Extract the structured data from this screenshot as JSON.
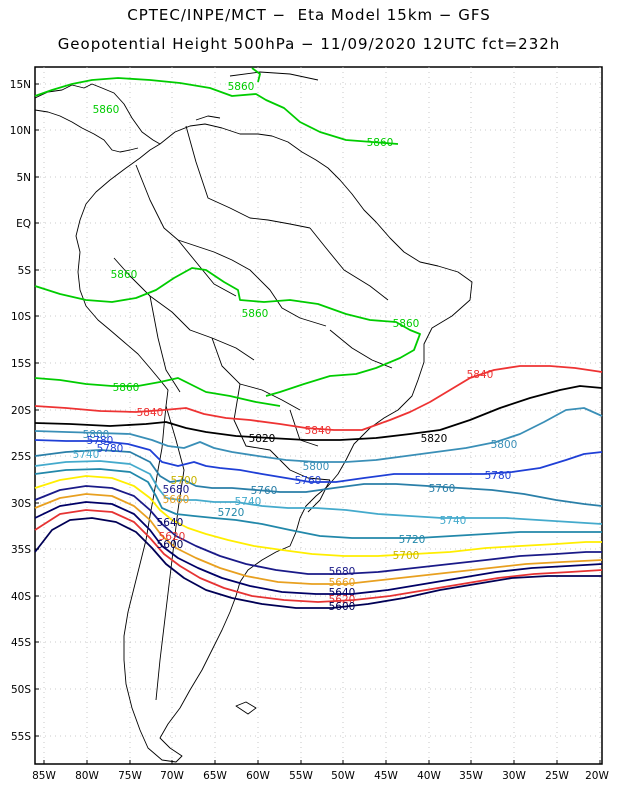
{
  "title_line1": "CPTEC/INPE/MCT −  Eta Model 15km − GFS",
  "title_line2": "Geopotential Height 500hPa − 11/09/2020 12UTC fct=232h",
  "axes": {
    "lat_labels": [
      "15N",
      "10N",
      "5N",
      "EQ",
      "5S",
      "10S",
      "15S",
      "20S",
      "25S",
      "30S",
      "35S",
      "40S",
      "45S",
      "50S",
      "55S"
    ],
    "lon_labels": [
      "85W",
      "80W",
      "75W",
      "70W",
      "65W",
      "60W",
      "55W",
      "50W",
      "45W",
      "40W",
      "35W",
      "30W",
      "25W",
      "20W"
    ]
  },
  "colors": {
    "c5860": "#00cc00",
    "c5840": "#ee3333",
    "c5820": "#000000",
    "c5800": "#3a8fb7",
    "c5780": "#1f3fd6",
    "c5760": "#2a7fa8",
    "c5740": "#44aacc",
    "c5720": "#2288aa",
    "c5700": "#ffee00",
    "c5680": "#1a1a88",
    "c5660": "#e8a020",
    "c5640": "#000066",
    "c5620": "#e63333",
    "c5600": "#000055"
  },
  "contour_labels": {
    "l5860a": "5860",
    "l5860b": "5860",
    "l5860c": "5860",
    "l5860d": "5860",
    "l5860e": "5860",
    "l5860f": "5860",
    "l5860g": "5860",
    "l5840a": "5840",
    "l5840b": "5840",
    "l5840c": "5840",
    "l5820a": "5820",
    "l5820b": "5820",
    "l5800a": "5800",
    "l5800b": "5800",
    "l5800c": "5800",
    "l5780a": "5780",
    "l5780b": "5780",
    "l5780c": "5780",
    "l5760a": "5760",
    "l5760b": "5760",
    "l5760c": "5760",
    "l5740a": "5740",
    "l5740b": "5740",
    "l5740c": "5740",
    "l5720a": "5720",
    "l5720b": "5720",
    "l5700a": "5700",
    "l5700b": "5700",
    "l5680a": "5680",
    "l5680b": "5680",
    "l5660a": "5660",
    "l5660b": "5660",
    "l5640a": "5640",
    "l5640b": "5640",
    "l5620a": "5620",
    "l5620b": "5620",
    "l5600a": "5600",
    "l5600b": "5600"
  }
}
